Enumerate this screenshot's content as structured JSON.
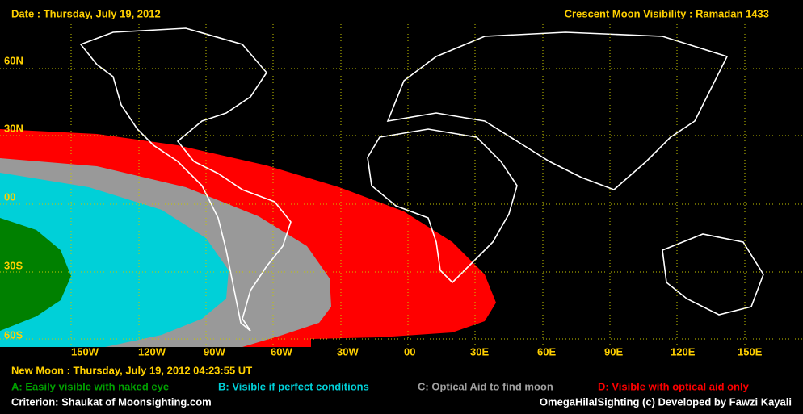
{
  "header": {
    "date": "Date : Thursday, July 19, 2012",
    "title": "Crescent Moon Visibility : Ramadan  1433"
  },
  "map": {
    "lat_labels": [
      "60N",
      "30N",
      "00",
      "30S",
      "60S"
    ],
    "lon_labels": [
      "150W",
      "120W",
      "90W",
      "60W",
      "30W",
      "00",
      "30E",
      "60E",
      "90E",
      "120E",
      "150E"
    ]
  },
  "footer": {
    "new_moon": "New Moon : Thursday, July 19, 2012  04:23:55  UT",
    "legend": [
      "A: Easily visible with naked eye",
      "B: Visible if perfect conditions",
      "C: Optical Aid to find moon",
      "D: Visible with optical aid only"
    ],
    "criterion": "Criterion: Shaukat of Moonsighting.com",
    "credit": "OmegaHilalSighting  (c)  Developed by Fawzi Kayali"
  }
}
